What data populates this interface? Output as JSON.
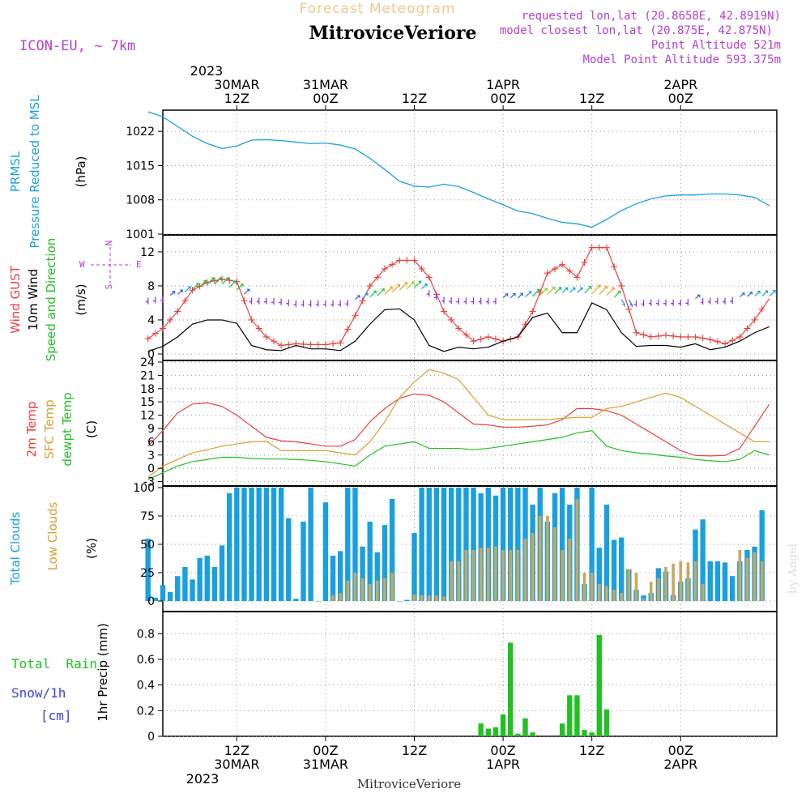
{
  "header": {
    "supertitle": "Forecast Meteogram",
    "title": "MitroviceVeriore",
    "model": "ICON-EU, ~ 7km",
    "requested": "requested lon,lat (20.8658E, 42.8919N)",
    "closest": "model closest lon,lat (20.875E, 42.875N)",
    "point_alt": "Point Altitude 521m",
    "model_alt": "Model Point Altitude 593.375m"
  },
  "footer": {
    "location": "MitroviceVeriore",
    "credit": "by Angel"
  },
  "time_axis": {
    "top_year": "2023",
    "ticks": [
      {
        "hour": 12,
        "top": "30MAR",
        "bottom_hour": "12Z",
        "bottom_date": "30MAR"
      },
      {
        "hour": 24,
        "top": "31MAR",
        "bottom_hour": "00Z",
        "bottom_date": "31MAR"
      },
      {
        "hour": 36,
        "top": "",
        "bottom_hour": "12Z",
        "bottom_date": ""
      },
      {
        "hour": 48,
        "top": "1APR",
        "bottom_hour": "00Z",
        "bottom_date": "1APR"
      },
      {
        "hour": 60,
        "top": "",
        "bottom_hour": "12Z",
        "bottom_date": ""
      },
      {
        "hour": 72,
        "top": "2APR",
        "bottom_hour": "00Z",
        "bottom_date": "2APR"
      }
    ],
    "hour_labels": [
      "12Z",
      "00Z",
      "12Z",
      "00Z",
      "12Z",
      "00Z"
    ],
    "bottom_year": "2023"
  },
  "panels": {
    "pressure": {
      "labels": [
        "PRMSL",
        "Pressure Reduced to MSL",
        "(hPa)"
      ]
    },
    "wind": {
      "labels": [
        "Wind GUST",
        "10m Wind",
        "Speed and Direction",
        "(m/s)"
      ],
      "compass": [
        "N",
        "S",
        "W",
        "E"
      ]
    },
    "temp": {
      "labels": [
        "2m Temp",
        "SFC Temp",
        "dewpt Temp",
        "(C)"
      ]
    },
    "clouds": {
      "labels": [
        "Total Clouds",
        "Low Clouds",
        "(%)"
      ]
    },
    "precip": {
      "labels": [
        "Total  Rain",
        "Snow/1h",
        "[cm]",
        "1hr Precip (mm)"
      ]
    }
  },
  "colors": {
    "pressure": "#1a9fe0",
    "gust": "#e84040",
    "wind": "#000000",
    "temp2m": "#e84040",
    "sfc": "#d8a030",
    "dew": "#22c022",
    "total_cloud": "#1a9fe0",
    "low_cloud": "#c8a860",
    "rain": "#22c022",
    "title_purple": "#b040d0",
    "super_orange": "#f0c890"
  },
  "chart_data": [
    {
      "type": "line",
      "name": "pressure",
      "title": "PRMSL",
      "ylabel": "(hPa)",
      "ylim": [
        1001,
        1026
      ],
      "yticks": [
        1001,
        1008,
        1015,
        1022
      ],
      "x": [
        0,
        2,
        4,
        6,
        8,
        10,
        12,
        14,
        16,
        18,
        20,
        22,
        24,
        26,
        28,
        30,
        32,
        34,
        36,
        38,
        40,
        42,
        44,
        46,
        48,
        50,
        52,
        54,
        56,
        58,
        60,
        62,
        64,
        66,
        68,
        70,
        72,
        74,
        76,
        78,
        80,
        82,
        84
      ],
      "values": [
        1026,
        1025,
        1023,
        1021,
        1019.5,
        1018.5,
        1019,
        1020.2,
        1020.3,
        1020.1,
        1019.8,
        1019.5,
        1019.6,
        1019.2,
        1018.4,
        1016.5,
        1014.2,
        1011.8,
        1010.8,
        1010.6,
        1011.2,
        1010.7,
        1009.5,
        1008.2,
        1007,
        1005.7,
        1005.2,
        1004.2,
        1003.4,
        1003.1,
        1002.4,
        1004,
        1005.8,
        1007.2,
        1008.2,
        1008.8,
        1009,
        1009,
        1009.2,
        1009.2,
        1009,
        1008.5,
        1006.8
      ]
    },
    {
      "type": "line",
      "name": "wind",
      "ylabel": "(m/s)",
      "ylim": [
        0,
        13.8
      ],
      "yticks": [
        0,
        4,
        8,
        12
      ],
      "x": [
        0,
        2,
        4,
        6,
        8,
        10,
        12,
        14,
        16,
        18,
        20,
        22,
        24,
        26,
        28,
        30,
        32,
        34,
        36,
        38,
        40,
        42,
        44,
        46,
        48,
        50,
        52,
        54,
        56,
        58,
        60,
        62,
        64,
        66,
        68,
        70,
        72,
        74,
        76,
        78,
        80,
        82,
        84
      ],
      "series": [
        {
          "name": "Wind GUST",
          "values": [
            1.8,
            3,
            5,
            7.5,
            8.4,
            8.8,
            8.5,
            4,
            2,
            1,
            1.2,
            1.1,
            1.1,
            1.3,
            4.5,
            8,
            10,
            11,
            11,
            9,
            5,
            3,
            1.5,
            2,
            1.5,
            2,
            5,
            9.5,
            10.5,
            9,
            12.5,
            12.5,
            8,
            2.5,
            2,
            2.2,
            2,
            2,
            1.7,
            1.2,
            2,
            4,
            6.5
          ]
        },
        {
          "name": "10m Wind",
          "values": [
            0.3,
            0.9,
            2,
            3.5,
            4,
            4,
            3.6,
            1,
            0.5,
            0.4,
            1,
            0.6,
            0.6,
            0.4,
            1.5,
            3.5,
            5.2,
            5.3,
            4,
            1,
            0.3,
            0.8,
            0.6,
            0.8,
            1.5,
            2,
            4.3,
            4.8,
            2.5,
            2.5,
            6,
            5.2,
            2.5,
            0.9,
            1,
            1,
            0.8,
            1.2,
            0.5,
            0.8,
            1.5,
            2.5,
            3.2
          ]
        },
        {
          "name": "Speed and Direction",
          "values": [
            6.6,
            6.8,
            7,
            7.6,
            8.2,
            8.2,
            7.5,
            6.6,
            6.6,
            6.5,
            6.3,
            6.3,
            6.3,
            6.3,
            6.4,
            6.7,
            7,
            7.5,
            7.8,
            7.5,
            6.7,
            6.6,
            6.6,
            6.6,
            6.6,
            6.6,
            6.8,
            7,
            7.2,
            7.2,
            7.1,
            6.9,
            6.4,
            6.3,
            6.4,
            6.4,
            6.4,
            6.5,
            6.6,
            6.6,
            6.7,
            6.8,
            6.8
          ]
        }
      ]
    },
    {
      "type": "line",
      "name": "temperature",
      "ylabel": "(C)",
      "ylim": [
        -4,
        24
      ],
      "yticks": [
        -3,
        0,
        3,
        6,
        9,
        12,
        15,
        18,
        21,
        24
      ],
      "x": [
        0,
        2,
        4,
        6,
        8,
        10,
        12,
        14,
        16,
        18,
        20,
        22,
        24,
        26,
        28,
        30,
        32,
        34,
        36,
        38,
        40,
        42,
        44,
        46,
        48,
        50,
        52,
        54,
        56,
        58,
        60,
        62,
        64,
        66,
        68,
        70,
        72,
        74,
        76,
        78,
        80,
        82,
        84
      ],
      "series": [
        {
          "name": "2m Temp",
          "values": [
            5,
            8.5,
            12.5,
            14.5,
            14.8,
            14,
            12,
            9.5,
            7,
            6.2,
            6,
            5.5,
            5,
            5,
            6.5,
            10.5,
            13.5,
            15.8,
            16.8,
            16.5,
            15,
            12.5,
            10,
            9.8,
            9.3,
            9.3,
            9.5,
            9.8,
            11,
            13.5,
            13.5,
            13,
            12,
            10,
            8,
            6,
            4,
            2.9,
            2.8,
            2.9,
            4.5,
            9.5,
            14.5
          ]
        },
        {
          "name": "SFC Temp",
          "values": [
            -2,
            0.5,
            2,
            3.5,
            4.2,
            5,
            5.5,
            6,
            6.1,
            4,
            4,
            4,
            4,
            3.5,
            3,
            6,
            10.5,
            16,
            19.5,
            22.3,
            21.5,
            20,
            16,
            12,
            11,
            11,
            11,
            11,
            11.3,
            11.5,
            11.5,
            13.5,
            14,
            15,
            16,
            17,
            16,
            14,
            12,
            10,
            8,
            6,
            6
          ]
        },
        {
          "name": "dewpt Temp",
          "values": [
            -2.5,
            -1,
            0.5,
            1.5,
            2,
            2.5,
            2.5,
            2.2,
            2.1,
            2.1,
            2,
            1.8,
            1.5,
            1,
            0.5,
            3,
            5,
            5.5,
            6,
            4.5,
            4.5,
            4.5,
            4.2,
            4.5,
            5,
            5.5,
            6,
            6.5,
            7,
            8,
            8.5,
            5,
            4,
            3.5,
            3.2,
            2.8,
            2.5,
            2,
            1.7,
            1.5,
            2,
            4,
            3
          ]
        }
      ]
    },
    {
      "type": "bar",
      "name": "clouds",
      "ylabel": "(%)",
      "ylim": [
        0,
        100
      ],
      "yticks": [
        0,
        25,
        50,
        75,
        100
      ],
      "x": [
        0,
        1,
        2,
        3,
        4,
        5,
        6,
        7,
        8,
        9,
        10,
        11,
        12,
        13,
        14,
        15,
        16,
        17,
        18,
        19,
        20,
        21,
        22,
        23,
        24,
        25,
        26,
        27,
        28,
        29,
        30,
        31,
        32,
        33,
        34,
        35,
        36,
        37,
        38,
        39,
        40,
        41,
        42,
        43,
        44,
        45,
        46,
        47,
        48,
        49,
        50,
        51,
        52,
        53,
        54,
        55,
        56,
        57,
        58,
        59,
        60,
        61,
        62,
        63,
        64,
        65,
        66,
        67,
        68,
        69,
        70,
        71,
        72,
        73,
        74,
        75,
        76,
        77,
        78,
        79,
        80,
        81,
        82,
        83
      ],
      "series": [
        {
          "name": "Total Clouds",
          "values": [
            55,
            3,
            14,
            8,
            22,
            30,
            19,
            38,
            40,
            30,
            49,
            95,
            100,
            100,
            100,
            100,
            100,
            100,
            100,
            73,
            2,
            70,
            100,
            0,
            87,
            40,
            44,
            100,
            100,
            48,
            70,
            43,
            67,
            90,
            0,
            1,
            60,
            100,
            100,
            100,
            100,
            100,
            100,
            100,
            100,
            95,
            100,
            93,
            100,
            100,
            100,
            100,
            85,
            100,
            70,
            95,
            100,
            85,
            100,
            15,
            100,
            47,
            85,
            54,
            56,
            28,
            10,
            5,
            7,
            29,
            26,
            5,
            17,
            20,
            63,
            72,
            35,
            35,
            34,
            22,
            35,
            45,
            48,
            80
          ]
        },
        {
          "name": "Low Clouds",
          "values": [
            0,
            0,
            0,
            0,
            0,
            0,
            0,
            0,
            0,
            0,
            0,
            0,
            0,
            0,
            0,
            0,
            0,
            0,
            0,
            0,
            0,
            0,
            0,
            0,
            0,
            5,
            7,
            18,
            25,
            20,
            15,
            18,
            20,
            25,
            0,
            0,
            6,
            5,
            5,
            5,
            4,
            35,
            35,
            45,
            45,
            47,
            47,
            48,
            45,
            45,
            45,
            55,
            60,
            75,
            75,
            65,
            45,
            55,
            90,
            25,
            25,
            15,
            13,
            10,
            7,
            28,
            25,
            2,
            17,
            20,
            30,
            33,
            35,
            34,
            35,
            15,
            0,
            0,
            0,
            0,
            45,
            38,
            43,
            35
          ]
        }
      ]
    },
    {
      "type": "bar",
      "name": "precip",
      "ylabel": "1hr Precip (mm)",
      "ylim": [
        0,
        0.96
      ],
      "yticks": [
        0,
        0.2,
        0.4,
        0.6,
        0.8
      ],
      "x": [
        45,
        46,
        47,
        48,
        49,
        50,
        51,
        52,
        56,
        57,
        58,
        59,
        60,
        61,
        62,
        63
      ],
      "series": [
        {
          "name": "Total Rain",
          "values": [
            0.1,
            0.06,
            0.07,
            0.17,
            0.73,
            0.02,
            0.14,
            0.03,
            0.1,
            0.32,
            0.32,
            0.05,
            0.03,
            0.79,
            0.21,
            0.0
          ]
        }
      ]
    }
  ]
}
